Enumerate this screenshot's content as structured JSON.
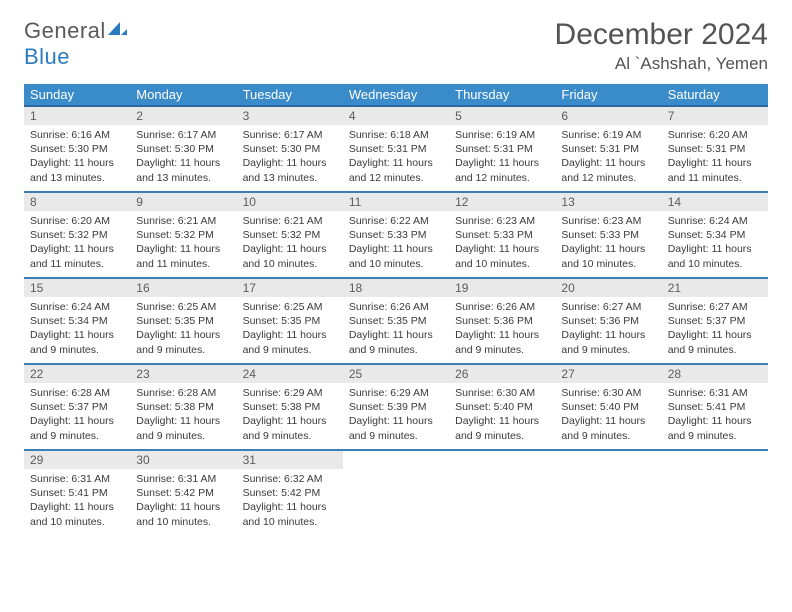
{
  "logo": {
    "word1": "General",
    "word2": "Blue"
  },
  "header": {
    "month_title": "December 2024",
    "location": "Al `Ashshah, Yemen"
  },
  "colors": {
    "header_bg": "#3a8bc9",
    "header_border": "#2a6a9e",
    "row_border": "#3a7fb5",
    "daynum_bg": "#e9e9e9",
    "text": "#333333",
    "logo_gray": "#595959",
    "logo_blue": "#2b7bbf"
  },
  "weekdays": [
    "Sunday",
    "Monday",
    "Tuesday",
    "Wednesday",
    "Thursday",
    "Friday",
    "Saturday"
  ],
  "days": [
    {
      "n": "1",
      "sr": "6:16 AM",
      "ss": "5:30 PM",
      "dl": "11 hours and 13 minutes."
    },
    {
      "n": "2",
      "sr": "6:17 AM",
      "ss": "5:30 PM",
      "dl": "11 hours and 13 minutes."
    },
    {
      "n": "3",
      "sr": "6:17 AM",
      "ss": "5:30 PM",
      "dl": "11 hours and 13 minutes."
    },
    {
      "n": "4",
      "sr": "6:18 AM",
      "ss": "5:31 PM",
      "dl": "11 hours and 12 minutes."
    },
    {
      "n": "5",
      "sr": "6:19 AM",
      "ss": "5:31 PM",
      "dl": "11 hours and 12 minutes."
    },
    {
      "n": "6",
      "sr": "6:19 AM",
      "ss": "5:31 PM",
      "dl": "11 hours and 12 minutes."
    },
    {
      "n": "7",
      "sr": "6:20 AM",
      "ss": "5:31 PM",
      "dl": "11 hours and 11 minutes."
    },
    {
      "n": "8",
      "sr": "6:20 AM",
      "ss": "5:32 PM",
      "dl": "11 hours and 11 minutes."
    },
    {
      "n": "9",
      "sr": "6:21 AM",
      "ss": "5:32 PM",
      "dl": "11 hours and 11 minutes."
    },
    {
      "n": "10",
      "sr": "6:21 AM",
      "ss": "5:32 PM",
      "dl": "11 hours and 10 minutes."
    },
    {
      "n": "11",
      "sr": "6:22 AM",
      "ss": "5:33 PM",
      "dl": "11 hours and 10 minutes."
    },
    {
      "n": "12",
      "sr": "6:23 AM",
      "ss": "5:33 PM",
      "dl": "11 hours and 10 minutes."
    },
    {
      "n": "13",
      "sr": "6:23 AM",
      "ss": "5:33 PM",
      "dl": "11 hours and 10 minutes."
    },
    {
      "n": "14",
      "sr": "6:24 AM",
      "ss": "5:34 PM",
      "dl": "11 hours and 10 minutes."
    },
    {
      "n": "15",
      "sr": "6:24 AM",
      "ss": "5:34 PM",
      "dl": "11 hours and 9 minutes."
    },
    {
      "n": "16",
      "sr": "6:25 AM",
      "ss": "5:35 PM",
      "dl": "11 hours and 9 minutes."
    },
    {
      "n": "17",
      "sr": "6:25 AM",
      "ss": "5:35 PM",
      "dl": "11 hours and 9 minutes."
    },
    {
      "n": "18",
      "sr": "6:26 AM",
      "ss": "5:35 PM",
      "dl": "11 hours and 9 minutes."
    },
    {
      "n": "19",
      "sr": "6:26 AM",
      "ss": "5:36 PM",
      "dl": "11 hours and 9 minutes."
    },
    {
      "n": "20",
      "sr": "6:27 AM",
      "ss": "5:36 PM",
      "dl": "11 hours and 9 minutes."
    },
    {
      "n": "21",
      "sr": "6:27 AM",
      "ss": "5:37 PM",
      "dl": "11 hours and 9 minutes."
    },
    {
      "n": "22",
      "sr": "6:28 AM",
      "ss": "5:37 PM",
      "dl": "11 hours and 9 minutes."
    },
    {
      "n": "23",
      "sr": "6:28 AM",
      "ss": "5:38 PM",
      "dl": "11 hours and 9 minutes."
    },
    {
      "n": "24",
      "sr": "6:29 AM",
      "ss": "5:38 PM",
      "dl": "11 hours and 9 minutes."
    },
    {
      "n": "25",
      "sr": "6:29 AM",
      "ss": "5:39 PM",
      "dl": "11 hours and 9 minutes."
    },
    {
      "n": "26",
      "sr": "6:30 AM",
      "ss": "5:40 PM",
      "dl": "11 hours and 9 minutes."
    },
    {
      "n": "27",
      "sr": "6:30 AM",
      "ss": "5:40 PM",
      "dl": "11 hours and 9 minutes."
    },
    {
      "n": "28",
      "sr": "6:31 AM",
      "ss": "5:41 PM",
      "dl": "11 hours and 9 minutes."
    },
    {
      "n": "29",
      "sr": "6:31 AM",
      "ss": "5:41 PM",
      "dl": "11 hours and 10 minutes."
    },
    {
      "n": "30",
      "sr": "6:31 AM",
      "ss": "5:42 PM",
      "dl": "11 hours and 10 minutes."
    },
    {
      "n": "31",
      "sr": "6:32 AM",
      "ss": "5:42 PM",
      "dl": "11 hours and 10 minutes."
    }
  ],
  "labels": {
    "sunrise": "Sunrise: ",
    "sunset": "Sunset: ",
    "daylight": "Daylight: "
  },
  "layout": {
    "start_weekday": 0,
    "total_cells": 35
  }
}
